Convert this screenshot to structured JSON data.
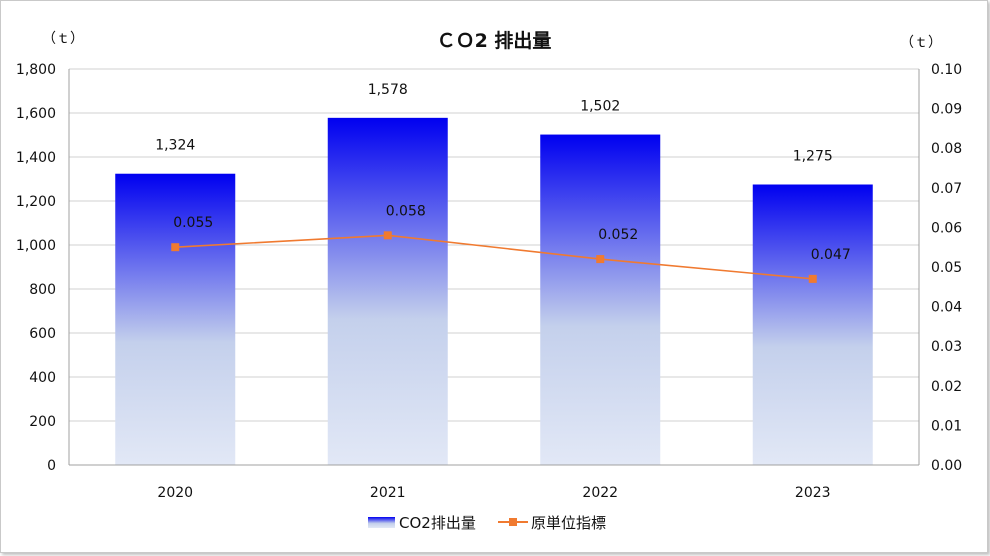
{
  "chart_data": {
    "type": "bar+line",
    "title": "ＣＯ2 排出量",
    "categories": [
      "2020",
      "2021",
      "2022",
      "2023"
    ],
    "y_left": {
      "unit_label": "（ｔ）",
      "ylim": [
        0,
        1800
      ],
      "ticks": [
        "0",
        "200",
        "400",
        "600",
        "800",
        "1,000",
        "1,200",
        "1,400",
        "1,600",
        "1,800"
      ]
    },
    "y_right": {
      "unit_label": "（ｔ）",
      "ylim": [
        0,
        0.1
      ],
      "ticks": [
        "0.00",
        "0.01",
        "0.02",
        "0.03",
        "0.04",
        "0.05",
        "0.06",
        "0.07",
        "0.08",
        "0.09",
        "0.10"
      ]
    },
    "series": [
      {
        "name": "CO2排出量",
        "type": "bar",
        "axis": "left",
        "values": [
          1324,
          1578,
          1502,
          1275
        ],
        "labels": [
          "1,324",
          "1,578",
          "1,502",
          "1,275"
        ]
      },
      {
        "name": "原単位指標",
        "type": "line",
        "axis": "right",
        "values": [
          0.055,
          0.058,
          0.052,
          0.047
        ],
        "labels": [
          "0.055",
          "0.058",
          "0.052",
          "0.047"
        ]
      }
    ],
    "legend_position": "bottom",
    "colors": {
      "bar_top": "#0000f0",
      "bar_mid": "#c4d0ec",
      "bar_bottom": "#e2e8f6",
      "line": "#f07a30",
      "grid": "#d0d0d0"
    }
  }
}
